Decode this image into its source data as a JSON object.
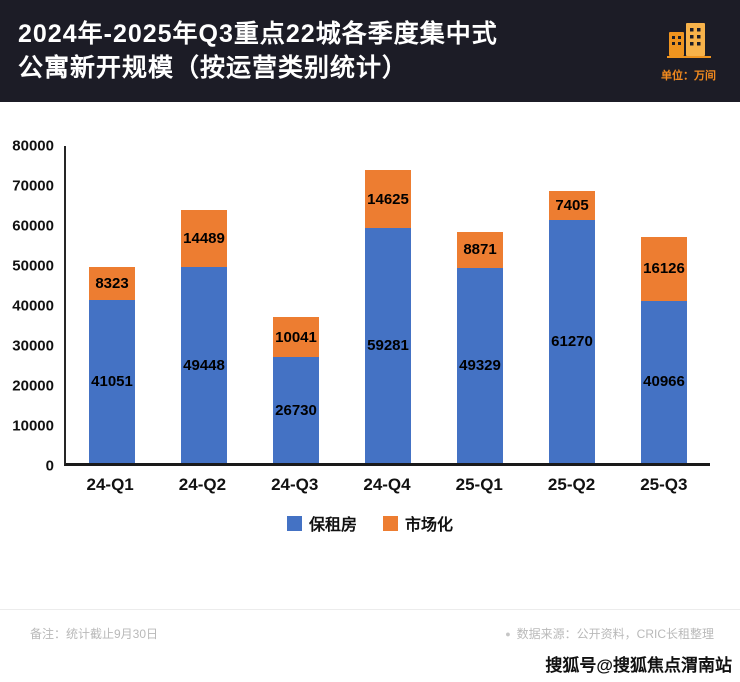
{
  "header": {
    "title_line1": "2024年-2025年Q3重点22城各季度集中式",
    "title_line2": "公寓新开规模（按运营类别统计）",
    "unit_label": "单位：万间"
  },
  "chart_data": {
    "type": "bar",
    "stacked": true,
    "title": "2024年-2025年Q3重点22城各季度集中式公寓新开规模（按运营类别统计）",
    "categories": [
      "24-Q1",
      "24-Q2",
      "24-Q3",
      "24-Q4",
      "25-Q1",
      "25-Q2",
      "25-Q3"
    ],
    "series": [
      {
        "name": "保租房",
        "color": "#4472c4",
        "values": [
          41051,
          49448,
          26730,
          59281,
          49329,
          61270,
          40966
        ]
      },
      {
        "name": "市场化",
        "color": "#ed7d31",
        "values": [
          8323,
          14489,
          10041,
          14625,
          8871,
          7405,
          16126
        ]
      }
    ],
    "xlabel": "",
    "ylabel": "",
    "ylim": [
      0,
      80000
    ],
    "ytick_step": 10000,
    "legend_position": "bottom",
    "grid": false
  },
  "footer": {
    "note": "备注：统计截止9月30日",
    "source_bullet": "●",
    "source": "数据来源：公开资料，CRIC长租整理"
  },
  "watermark_text": "搜狐号@搜狐焦点渭南站"
}
